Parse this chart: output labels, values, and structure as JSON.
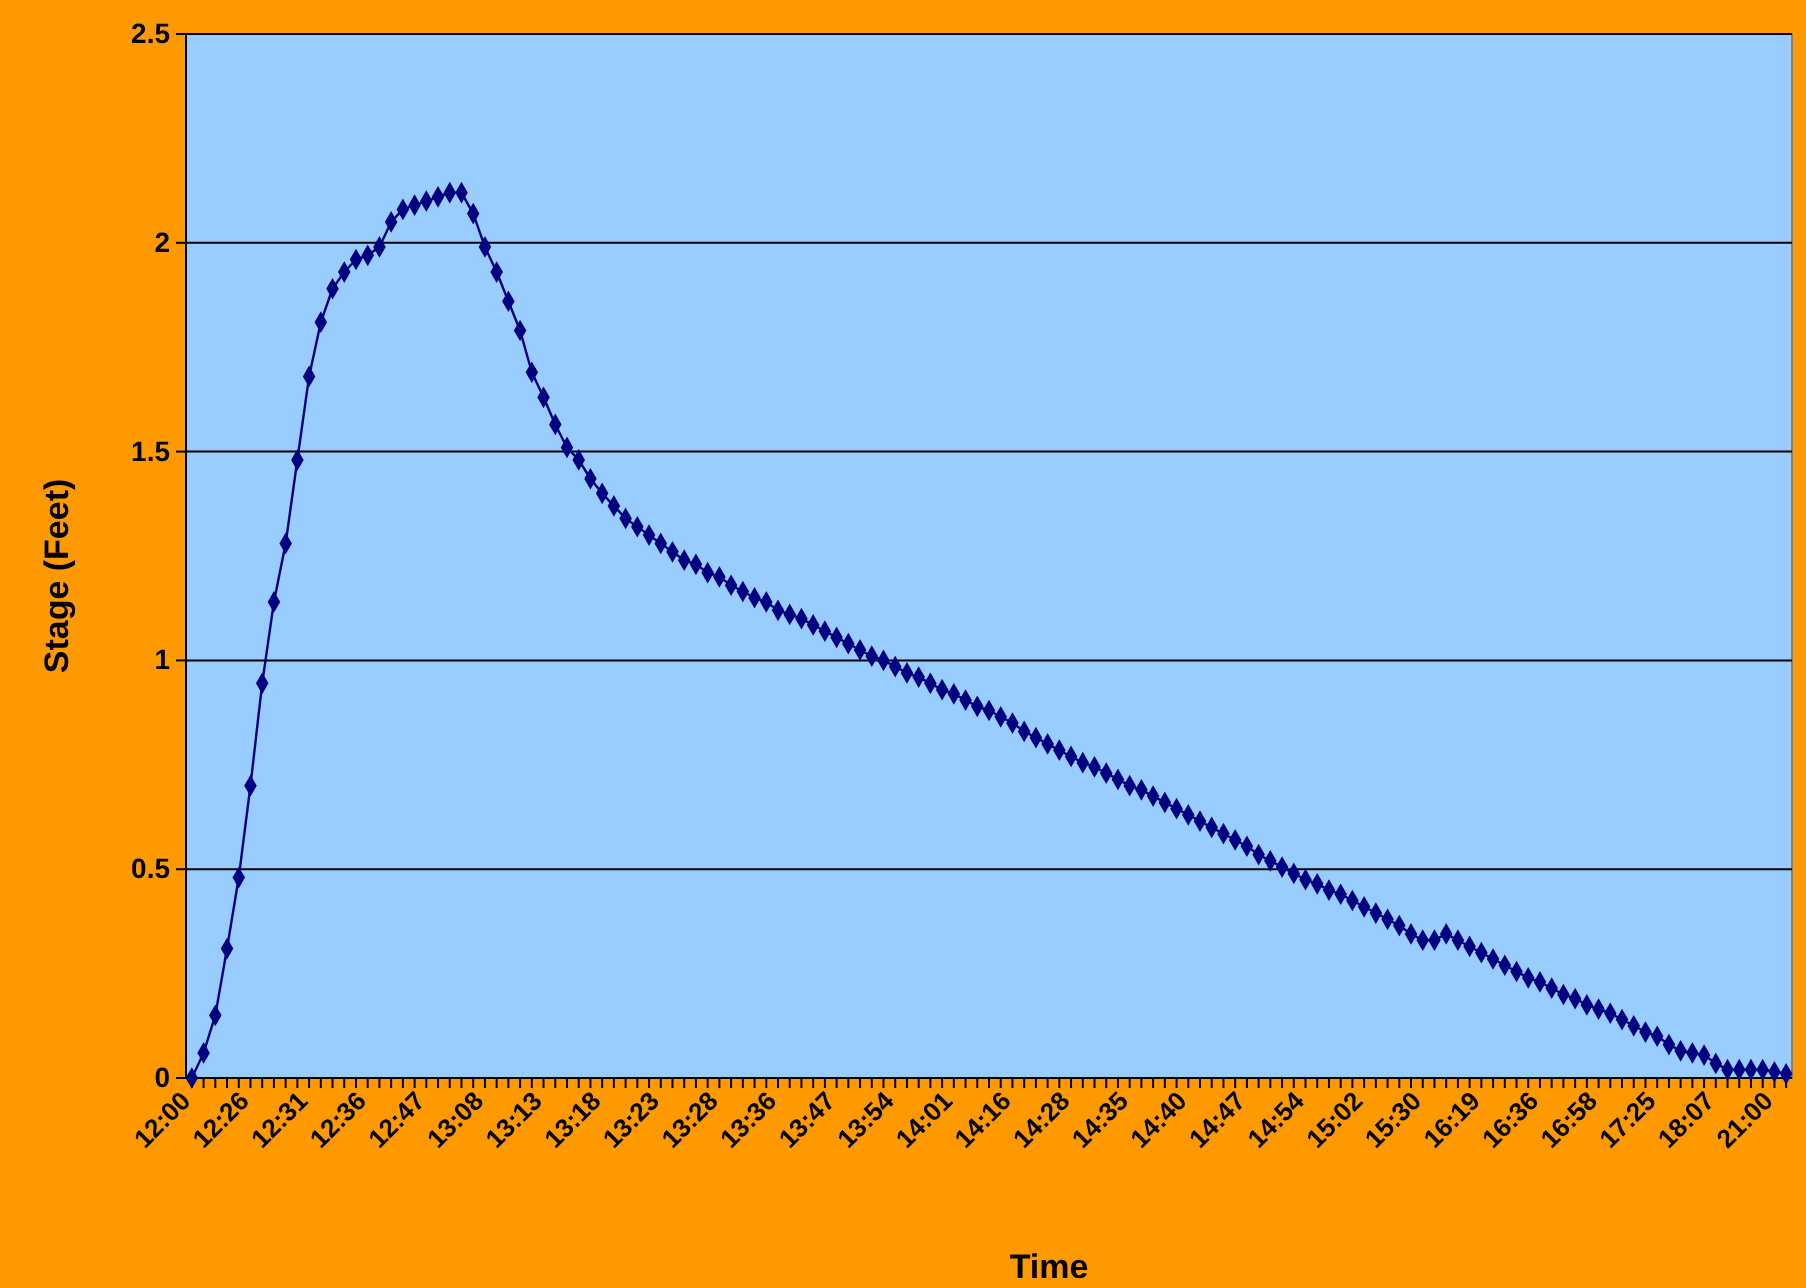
{
  "chart_data": {
    "type": "line",
    "xlabel": "Time",
    "ylabel": "Stage (Feet)",
    "categories": [
      "12:00",
      null,
      null,
      null,
      null,
      "12:26",
      null,
      null,
      null,
      null,
      "12:31",
      null,
      null,
      null,
      null,
      "12:36",
      null,
      null,
      null,
      null,
      "12:47",
      null,
      null,
      null,
      null,
      "13:08",
      null,
      null,
      null,
      null,
      "13:13",
      null,
      null,
      null,
      null,
      "13:18",
      null,
      null,
      null,
      null,
      "13:23",
      null,
      null,
      null,
      null,
      "13:28",
      null,
      null,
      null,
      null,
      "13:36",
      null,
      null,
      null,
      null,
      "13:47",
      null,
      null,
      null,
      null,
      "13:54",
      null,
      null,
      null,
      null,
      "14:01",
      null,
      null,
      null,
      null,
      "14:16",
      null,
      null,
      null,
      null,
      "14:28",
      null,
      null,
      null,
      null,
      "14:35",
      null,
      null,
      null,
      null,
      "14:40",
      null,
      null,
      null,
      null,
      "14:47",
      null,
      null,
      null,
      null,
      "14:54",
      null,
      null,
      null,
      null,
      "15:02",
      null,
      null,
      null,
      null,
      "15:30",
      null,
      null,
      null,
      null,
      "16:19",
      null,
      null,
      null,
      null,
      "16:36",
      null,
      null,
      null,
      null,
      "16:58",
      null,
      null,
      null,
      null,
      "17:25",
      null,
      null,
      null,
      null,
      "18:07",
      null,
      null,
      null,
      null,
      "21:00",
      null
    ],
    "series": [
      {
        "color": "#000080",
        "values": [
          0,
          0.06,
          0.15,
          0.31,
          0.48,
          0.7,
          0.945,
          1.14,
          1.28,
          1.48,
          1.68,
          1.81,
          1.89,
          1.93,
          1.96,
          1.97,
          1.99,
          2.05,
          2.08,
          2.09,
          2.1,
          2.11,
          2.12,
          2.12,
          2.07,
          1.99,
          1.93,
          1.86,
          1.79,
          1.69,
          1.63,
          1.565,
          1.51,
          1.48,
          1.435,
          1.4,
          1.37,
          1.34,
          1.32,
          1.3,
          1.28,
          1.26,
          1.24,
          1.23,
          1.21,
          1.2,
          1.18,
          1.165,
          1.15,
          1.14,
          1.12,
          1.11,
          1.1,
          1.085,
          1.07,
          1.055,
          1.04,
          1.025,
          1.01,
          1,
          0.985,
          0.97,
          0.96,
          0.945,
          0.93,
          0.92,
          0.905,
          0.89,
          0.88,
          0.865,
          0.85,
          0.83,
          0.815,
          0.8,
          0.785,
          0.77,
          0.755,
          0.745,
          0.73,
          0.715,
          0.7,
          0.69,
          0.675,
          0.66,
          0.645,
          0.63,
          0.615,
          0.6,
          0.585,
          0.57,
          0.555,
          0.535,
          0.52,
          0.505,
          0.49,
          0.475,
          0.465,
          0.45,
          0.44,
          0.425,
          0.41,
          0.395,
          0.38,
          0.365,
          0.345,
          0.33,
          0.33,
          0.345,
          0.33,
          0.315,
          0.3,
          0.285,
          0.27,
          0.255,
          0.24,
          0.23,
          0.215,
          0.2,
          0.19,
          0.175,
          0.165,
          0.155,
          0.14,
          0.125,
          0.11,
          0.1,
          0.08,
          0.065,
          0.06,
          0.055,
          0.035,
          0.02,
          0.02,
          0.02,
          0.02,
          0.015,
          0.01
        ]
      }
    ],
    "ylim": [
      0,
      2.5
    ],
    "yticks": [
      0,
      0.5,
      1,
      1.5,
      2,
      2.5
    ],
    "grid": "y",
    "legend": false,
    "marker": "diamond",
    "line_style": "solid"
  }
}
